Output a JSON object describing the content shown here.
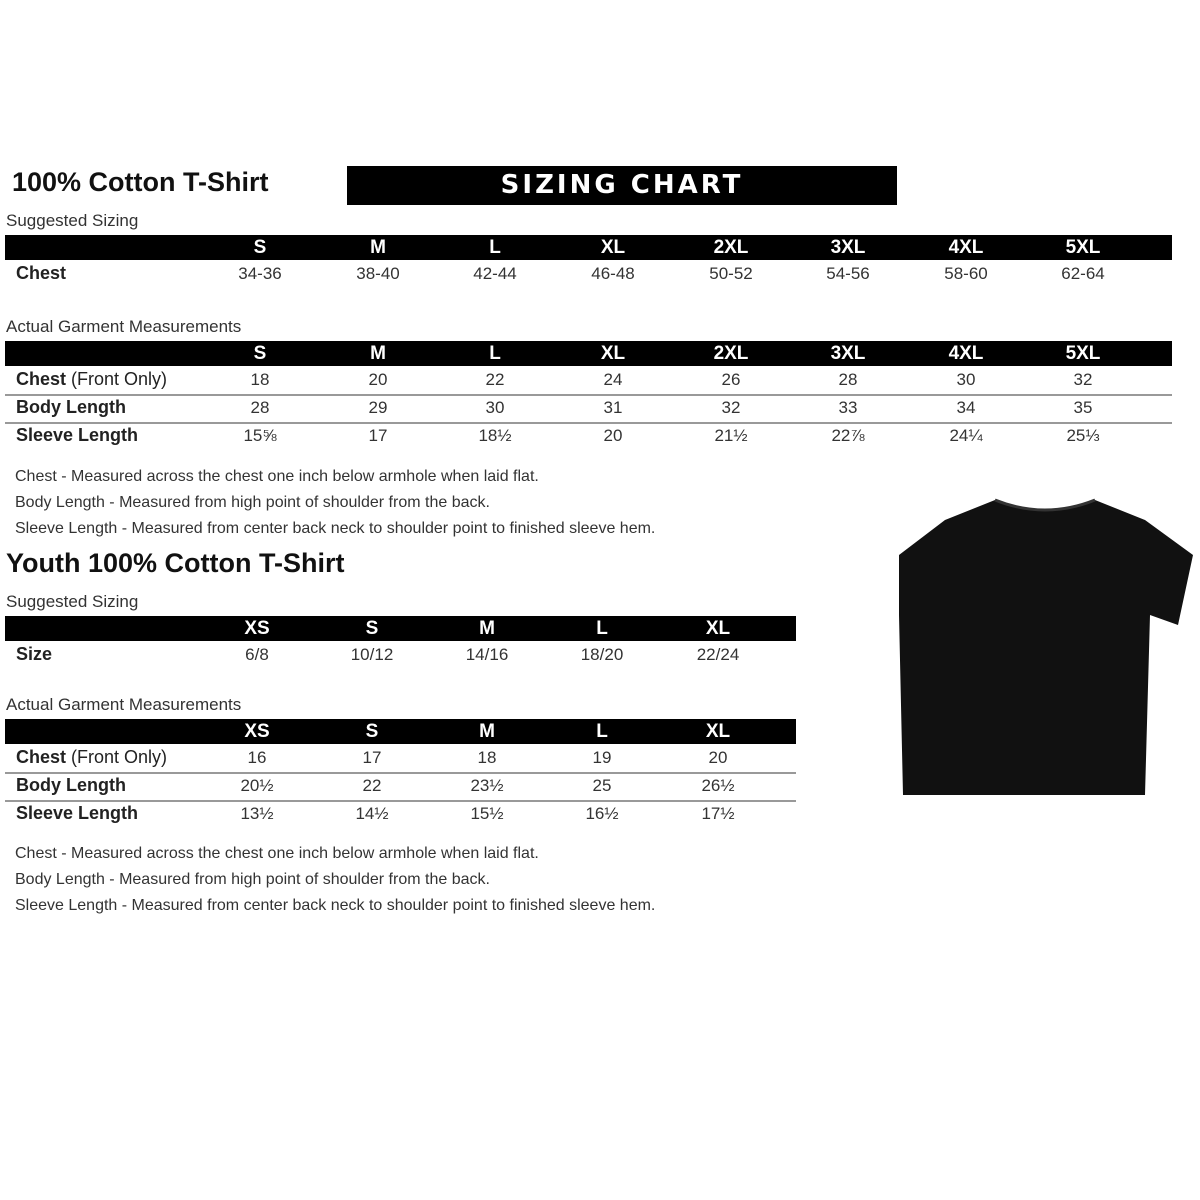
{
  "adult": {
    "title": "100% Cotton T-Shirt",
    "banner": "SIZING CHART",
    "suggested_label": "Suggested Sizing",
    "sizes": [
      "S",
      "M",
      "L",
      "XL",
      "2XL",
      "3XL",
      "4XL",
      "5XL"
    ],
    "suggested_rows": [
      {
        "label": "Chest",
        "values": [
          "34-36",
          "38-40",
          "42-44",
          "46-48",
          "50-52",
          "54-56",
          "58-60",
          "62-64"
        ]
      }
    ],
    "actual_label": "Actual Garment Measurements",
    "actual_rows": [
      {
        "label": "Chest",
        "label_note": "(Front Only)",
        "values": [
          "18",
          "20",
          "22",
          "24",
          "26",
          "28",
          "30",
          "32"
        ]
      },
      {
        "label": "Body Length",
        "values": [
          "28",
          "29",
          "30",
          "31",
          "32",
          "33",
          "34",
          "35"
        ]
      },
      {
        "label": "Sleeve Length",
        "values": [
          "15⅝",
          "17",
          "18½",
          "20",
          "21½",
          "22⅞",
          "24¼",
          "25⅓"
        ]
      }
    ],
    "notes": [
      "Chest - Measured across the chest one inch below armhole when laid flat.",
      "Body Length - Measured from high point of shoulder from the back.",
      "Sleeve Length - Measured from center back neck to shoulder point to finished sleeve hem."
    ]
  },
  "youth": {
    "title": "Youth 100% Cotton T-Shirt",
    "suggested_label": "Suggested Sizing",
    "sizes": [
      "XS",
      "S",
      "M",
      "L",
      "XL"
    ],
    "suggested_rows": [
      {
        "label": "Size",
        "values": [
          "6/8",
          "10/12",
          "14/16",
          "18/20",
          "22/24"
        ]
      }
    ],
    "actual_label": "Actual Garment Measurements",
    "actual_rows": [
      {
        "label": "Chest",
        "label_note": "(Front Only)",
        "values": [
          "16",
          "17",
          "18",
          "19",
          "20"
        ]
      },
      {
        "label": "Body Length",
        "values": [
          "20½",
          "22",
          "23½",
          "25",
          "26½"
        ]
      },
      {
        "label": "Sleeve Length",
        "values": [
          "13½",
          "14½",
          "15½",
          "16½",
          "17½"
        ]
      }
    ],
    "notes": [
      "Chest - Measured across the chest one inch below armhole when laid flat.",
      "Body Length - Measured from high point of shoulder from the back.",
      "Sleeve Length - Measured from center back neck to shoulder point to finished sleeve hem."
    ]
  },
  "image": {
    "icon": "tshirt-icon",
    "color": "#111111"
  }
}
